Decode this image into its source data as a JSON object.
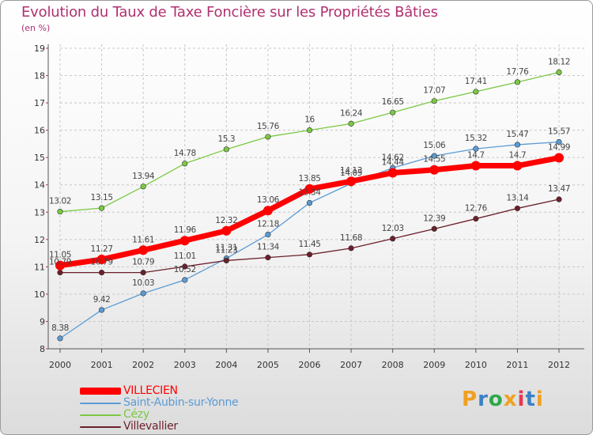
{
  "title": "Evolution du Taux de Taxe Foncière sur les Propriétés Bâties",
  "subtitle": "(en %)",
  "logo": {
    "text": "Proxiti",
    "colors": [
      "#f0a020",
      "#3b82c4",
      "#2ea84a",
      "#f0a020",
      "#e63950",
      "#3b82c4",
      "#f0a020"
    ]
  },
  "chart_data": {
    "type": "line",
    "title": "Evolution du Taux de Taxe Foncière sur les Propriétés Bâties",
    "ylabel": "(en %)",
    "xlabel": "",
    "x": [
      "2000",
      "2001",
      "2002",
      "2003",
      "2004",
      "2005",
      "2006",
      "2007",
      "2008",
      "2009",
      "2010",
      "2011",
      "2012"
    ],
    "ylim": [
      8,
      19
    ],
    "yticks": [
      "8",
      "9",
      "10",
      "11",
      "12",
      "13",
      "14",
      "15",
      "16",
      "17",
      "18",
      "19"
    ],
    "grid": true,
    "legend_position": "bottom-left",
    "series": [
      {
        "name": "VILLECIEN",
        "color": "#ff0000",
        "values": [
          11.05,
          11.27,
          11.61,
          11.96,
          12.32,
          13.06,
          13.85,
          14.13,
          14.44,
          14.55,
          14.7,
          14.7,
          14.99
        ],
        "labels": [
          "11.05",
          "11.27",
          "11.61",
          "11.96",
          "12.32",
          "13.06",
          "13.85",
          "14.13",
          "14.44",
          "14.55",
          "14.7",
          "14.7",
          "14.99"
        ]
      },
      {
        "name": "Saint-Aubin-sur-Yonne",
        "color": "#5b9bd5",
        "values": [
          8.38,
          9.42,
          10.03,
          10.52,
          11.31,
          12.18,
          13.34,
          14.05,
          14.62,
          15.06,
          15.32,
          15.47,
          15.57
        ],
        "labels": [
          "8.38",
          "9.42",
          "10.03",
          "10.52",
          "11.31",
          "12.18",
          "13.34",
          "14.05",
          "14.62",
          "15.06",
          "15.32",
          "15.47",
          "15.57"
        ]
      },
      {
        "name": "Cézy",
        "color": "#7ac943",
        "values": [
          13.02,
          13.15,
          13.94,
          14.78,
          15.3,
          15.76,
          16,
          16.24,
          16.65,
          17.07,
          17.41,
          17.76,
          18.12
        ],
        "labels": [
          "13.02",
          "13.15",
          "13.94",
          "14.78",
          "15.3",
          "15.76",
          "16",
          "16.24",
          "16.65",
          "17.07",
          "17.41",
          "17.76",
          "18.12"
        ]
      },
      {
        "name": "Villevallier",
        "color": "#6b1f2a",
        "values": [
          10.79,
          10.79,
          10.79,
          11.01,
          11.23,
          11.34,
          11.45,
          11.68,
          12.03,
          12.39,
          12.76,
          13.14,
          13.47
        ],
        "labels": [
          "10.79",
          "10.79",
          "10.79",
          "11.01",
          "11.23",
          "11.34",
          "11.45",
          "11.68",
          "12.03",
          "12.39",
          "12.76",
          "13.14",
          "13.47"
        ]
      }
    ]
  }
}
